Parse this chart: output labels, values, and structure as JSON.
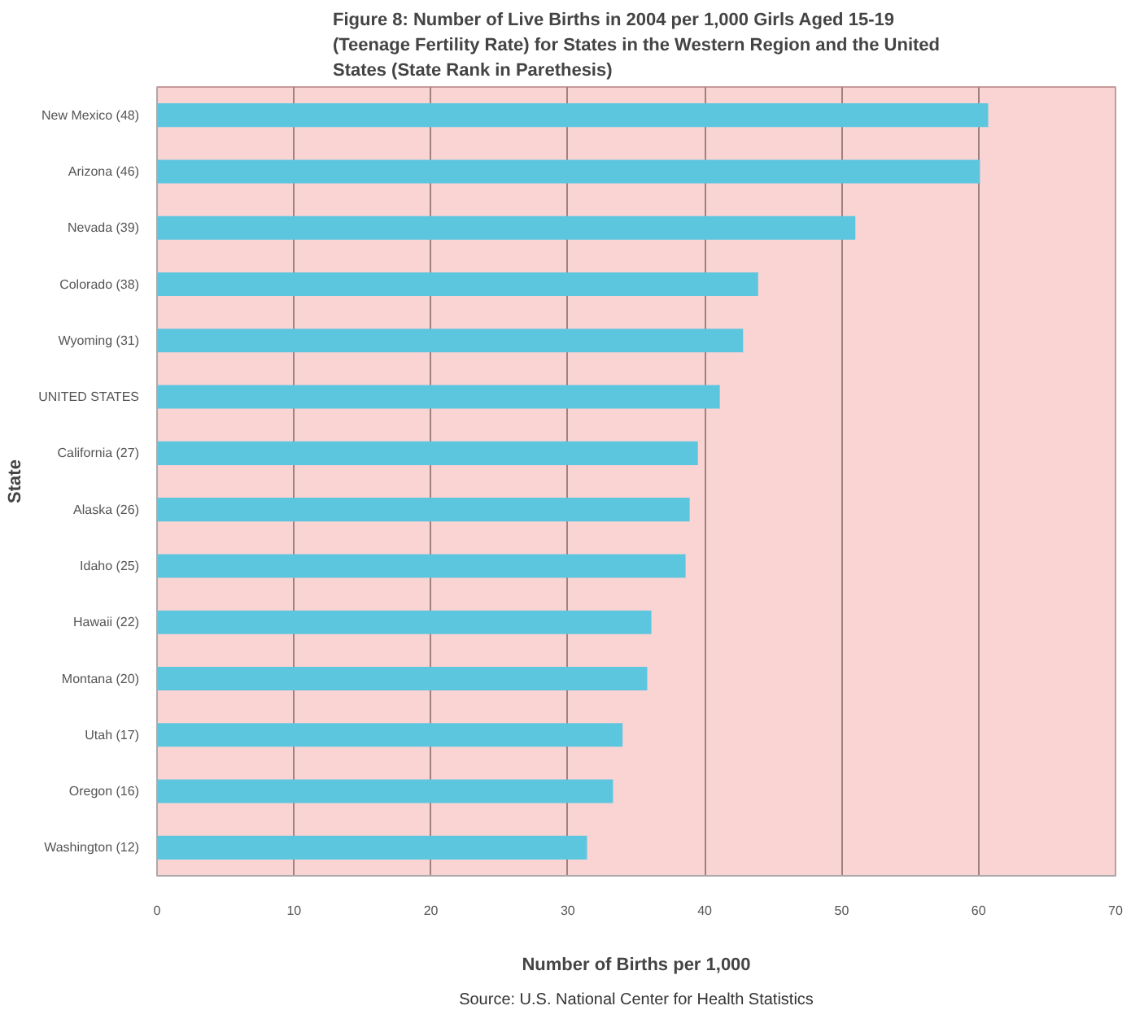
{
  "chart_data": {
    "type": "bar",
    "orientation": "horizontal",
    "title": "Figure 8: Number of Live Births in 2004 per 1,000 Girls Aged 15-19 (Teenage Fertility Rate) for States in the Western Region and the United States (State Rank in Parethesis)",
    "xlabel": "Number of Births per 1,000",
    "ylabel": "State",
    "categories": [
      "New Mexico (48)",
      "Arizona (46)",
      "Nevada (39)",
      "Colorado (38)",
      "Wyoming (31)",
      "UNITED STATES",
      "California (27)",
      "Alaska (26)",
      "Idaho (25)",
      "Hawaii (22)",
      "Montana (20)",
      "Utah (17)",
      "Oregon (16)",
      "Washington (12)"
    ],
    "values": [
      60.7,
      60.1,
      51.0,
      43.9,
      42.8,
      41.1,
      39.5,
      38.9,
      38.6,
      36.1,
      35.8,
      34.0,
      33.3,
      31.4
    ],
    "color": "#5cc6df",
    "xlim": [
      0,
      70
    ],
    "xticks": [
      0,
      10,
      20,
      30,
      40,
      50,
      60,
      70
    ],
    "grid": "x",
    "annotations": [
      "Source: U.S. National Center for Health Statistics"
    ]
  }
}
